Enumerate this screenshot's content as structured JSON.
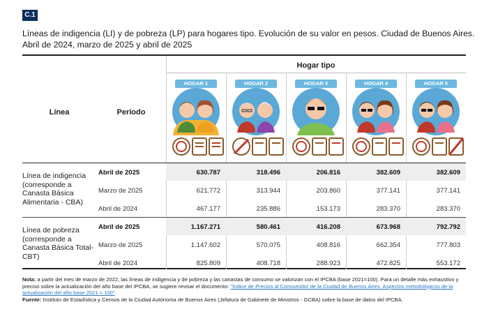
{
  "badge": "C.1",
  "title": "Líneas de indigencia (LI) y de pobreza (LP) para hogares tipo. Evolución de su valor en pesos. Ciudad de Buenos Aires. Abril de 2024, marzo de 2025 y abril de 2025",
  "header": {
    "linea": "Línea",
    "periodo": "Período",
    "hogar_tipo": "Hogar tipo",
    "hogares": [
      {
        "label": "HOGAR 1",
        "icon": "family-couple-icon"
      },
      {
        "label": "HOGAR 2",
        "icon": "elderly-couple-icon"
      },
      {
        "label": "HOGAR 3",
        "icon": "young-man-icon"
      },
      {
        "label": "HOGAR 4",
        "icon": "young-couple-icon"
      },
      {
        "label": "HOGAR 5",
        "icon": "young-couple-icon"
      }
    ]
  },
  "groups": [
    {
      "label": "Línea de indigencia (corresponde a Canasta Básica Alimentaria - CBA)",
      "rows": [
        {
          "periodo": "Abril de 2025",
          "bold": true,
          "values": [
            "630.787",
            "318.496",
            "206.816",
            "382.609",
            "382.609"
          ]
        },
        {
          "periodo": "Marzo de 2025",
          "bold": false,
          "values": [
            "621.772",
            "313.944",
            "203.860",
            "377.141",
            "377.141"
          ]
        },
        {
          "periodo": "Abril de 2024",
          "bold": false,
          "values": [
            "467.177",
            "235.886",
            "153.173",
            "283.370",
            "283.370"
          ]
        }
      ]
    },
    {
      "label": "Línea de pobreza (corresponde a Canasta Básica Total- CBT)",
      "rows": [
        {
          "periodo": "Abril de 2025",
          "bold": true,
          "values": [
            "1.167.271",
            "580.461",
            "416.208",
            "673.968",
            "792.792"
          ]
        },
        {
          "periodo": "Marzo de 2025",
          "bold": false,
          "values": [
            "1.147.602",
            "570.075",
            "408.816",
            "662.354",
            "777.803"
          ]
        },
        {
          "periodo": "Abril de 2024",
          "bold": false,
          "values": [
            "825.809",
            "408.718",
            "288.923",
            "472.825",
            "553.172"
          ]
        }
      ]
    }
  ],
  "notes": {
    "nota_label": "Nota:",
    "nota_text": " a partir del mes de marzo de 2022, las líneas de indigencia y de pobreza y las canastas de consumo se valorizan con el IPCBA (base 2021=100). Para un detalle más exhaustivo y preciso sobre la actualización del año base del IPCBA, se sugiere revisar el documento: ",
    "link_text": "\"Índice de Precios al Consumidor de la Ciudad de Buenos Aires. Aspectos metodológicos de la actualización del año base 2021 = 100\"",
    "nota_end": ".",
    "fuente_label": "Fuente:",
    "fuente_text": " Instituto de Estadística y Censos de la Ciudad Autónoma de Buenos Aires (Jefatura de Gabinete de Ministros - GCBA) sobre la base de datos del IPCBA."
  },
  "colors": {
    "badge": "#0a2f5c",
    "tag": "#6cb8e0",
    "row_highlight": "#eeeeee",
    "link": "#2a78c0"
  }
}
